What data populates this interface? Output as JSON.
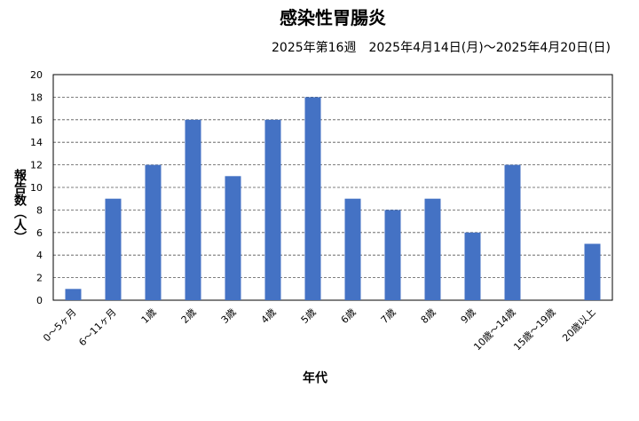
{
  "chart_data": {
    "type": "bar",
    "title": "感染性胃腸炎",
    "subtitle": "2025年第16週　2025年4月14日(月)～2025年4月20日(日)",
    "y_label": "報告数（人）",
    "x_label": "年代",
    "categories": [
      "0～5ヶ月",
      "6～11ヶ月",
      "1歳",
      "2歳",
      "3歳",
      "4歳",
      "5歳",
      "6歳",
      "7歳",
      "8歳",
      "9歳",
      "10歳～14歳",
      "15歳～19歳",
      "20歳以上"
    ],
    "values": [
      1,
      9,
      12,
      16,
      11,
      16,
      18,
      9,
      8,
      9,
      6,
      12,
      0,
      5
    ],
    "color": "#4472c4",
    "ylim": [
      0,
      20
    ],
    "yticks": [
      0,
      2,
      4,
      6,
      8,
      10,
      12,
      14,
      16,
      18,
      20
    ],
    "grid": true
  }
}
